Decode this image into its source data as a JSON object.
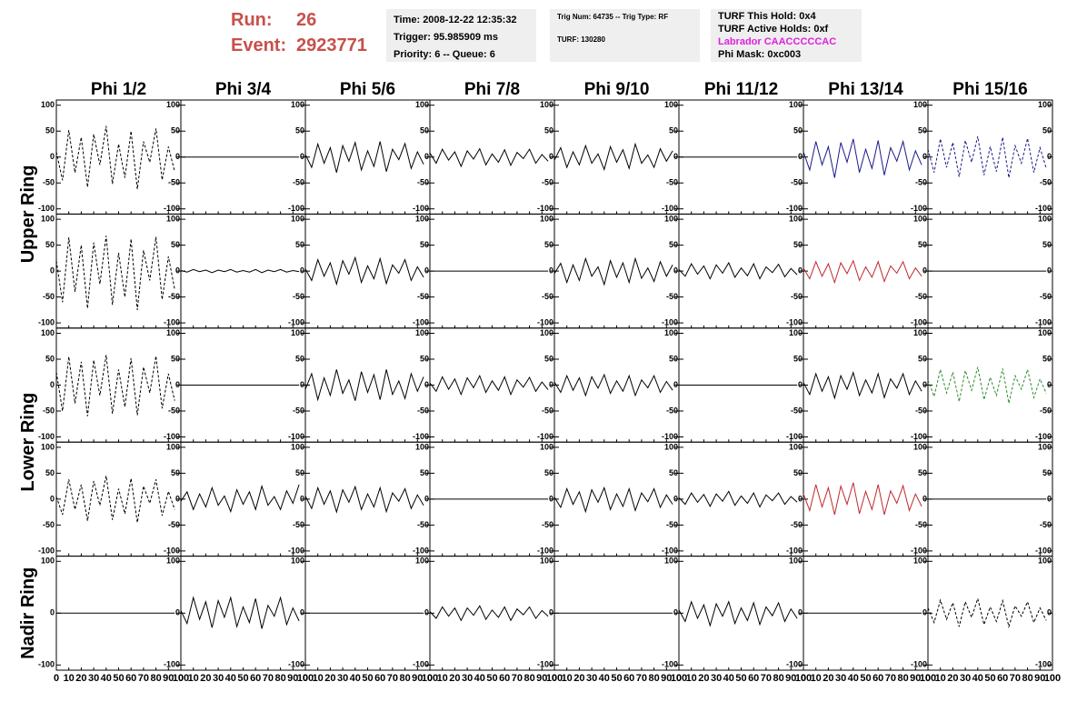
{
  "header": {
    "run_label": "Run:",
    "run": "26",
    "event_label": "Event:",
    "event": "2923771",
    "info_boxes": [
      [
        "Time: 2008-12-22 12:35:32",
        "Trigger: 95.985909 ms",
        "Priority: 6 -- Queue: 6"
      ],
      [
        "Trig Num: 64735 -- Trig Type: RF",
        "TURF: 130280"
      ],
      [
        "TURF This Hold: 0x4",
        "TURF Active Holds: 0xf",
        "Labrador CAACCCCCAC",
        "Phi Mask: 0xc003"
      ]
    ]
  },
  "chart_data": {
    "type": "line",
    "columns": [
      "Phi 1/2",
      "Phi 3/4",
      "Phi 5/6",
      "Phi 7/8",
      "Phi 9/10",
      "Phi 11/12",
      "Phi 13/14",
      "Phi 15/16"
    ],
    "rings": [
      "Upper Ring",
      "Lower Ring",
      "Nadir Ring"
    ],
    "xlim": [
      0,
      100
    ],
    "xticks": [
      0,
      10,
      20,
      30,
      40,
      50,
      60,
      70,
      80,
      90,
      100
    ],
    "ylim": [
      -110,
      110
    ],
    "yticks": [
      -100,
      -50,
      0,
      50,
      100
    ],
    "nadir_yticks": [
      -100,
      0,
      100
    ],
    "x": [
      0,
      5,
      10,
      15,
      20,
      25,
      30,
      35,
      40,
      45,
      50,
      55,
      60,
      65,
      70,
      75,
      80,
      85,
      90,
      95
    ],
    "panels": [
      [
        {
          "color": "#000000",
          "dashed": true,
          "values": [
            10,
            -45,
            52,
            -30,
            38,
            -58,
            44,
            -15,
            60,
            -52,
            25,
            -40,
            50,
            -62,
            30,
            -10,
            55,
            -44,
            20,
            -28
          ]
        },
        {
          "color": "#000000",
          "dashed": false,
          "values": [
            0,
            0,
            0,
            0,
            0,
            0,
            0,
            0,
            0,
            0,
            0,
            0,
            0,
            0,
            0,
            0,
            0,
            0,
            0,
            0
          ]
        },
        {
          "color": "#000000",
          "dashed": false,
          "values": [
            5,
            -20,
            25,
            -12,
            18,
            -30,
            22,
            -8,
            28,
            -25,
            12,
            -18,
            30,
            -28,
            15,
            -5,
            26,
            -22,
            10,
            -14
          ]
        },
        {
          "color": "#000000",
          "dashed": false,
          "values": [
            8,
            -12,
            15,
            -6,
            10,
            -18,
            12,
            -4,
            16,
            -15,
            6,
            -10,
            14,
            -16,
            9,
            -3,
            15,
            -12,
            5,
            -8
          ]
        },
        {
          "color": "#000000",
          "dashed": false,
          "values": [
            -6,
            18,
            -20,
            10,
            -15,
            22,
            -12,
            6,
            -24,
            20,
            -10,
            14,
            -22,
            25,
            -12,
            4,
            -20,
            16,
            -8,
            12
          ]
        },
        {
          "color": "#000000",
          "dashed": false,
          "values": [
            0,
            0,
            0,
            0,
            0,
            0,
            0,
            0,
            0,
            0,
            0,
            0,
            0,
            0,
            0,
            0,
            0,
            0,
            0,
            0
          ]
        },
        {
          "color": "#1a1a8c",
          "dashed": false,
          "values": [
            10,
            -25,
            30,
            -15,
            20,
            -40,
            28,
            -10,
            35,
            -30,
            15,
            -22,
            32,
            -35,
            18,
            -8,
            30,
            -25,
            12,
            -15
          ]
        },
        {
          "color": "#1a1a8c",
          "dashed": true,
          "values": [
            15,
            -30,
            35,
            -20,
            28,
            -38,
            32,
            -10,
            40,
            -35,
            20,
            -28,
            38,
            -40,
            22,
            -12,
            36,
            -30,
            18,
            -22
          ]
        }
      ],
      [
        {
          "color": "#000000",
          "dashed": true,
          "values": [
            20,
            -60,
            65,
            -40,
            50,
            -72,
            55,
            -25,
            68,
            -65,
            35,
            -50,
            62,
            -75,
            40,
            -18,
            66,
            -55,
            28,
            -35
          ]
        },
        {
          "color": "#000000",
          "dashed": false,
          "values": [
            1,
            -2,
            3,
            -1,
            2,
            -3,
            2,
            -1,
            3,
            -2,
            1,
            -2,
            3,
            -3,
            2,
            -1,
            3,
            -2,
            1,
            -1
          ]
        },
        {
          "color": "#000000",
          "dashed": false,
          "values": [
            4,
            -18,
            22,
            -10,
            16,
            -25,
            20,
            -6,
            26,
            -22,
            10,
            -15,
            24,
            -24,
            12,
            -4,
            22,
            -18,
            8,
            -12
          ]
        },
        {
          "color": "#000000",
          "dashed": false,
          "values": [
            0,
            0,
            0,
            0,
            0,
            0,
            0,
            0,
            0,
            0,
            0,
            0,
            0,
            0,
            0,
            0,
            0,
            0,
            0,
            0
          ]
        },
        {
          "color": "#000000",
          "dashed": false,
          "values": [
            -5,
            15,
            -22,
            12,
            -18,
            24,
            -10,
            8,
            -26,
            20,
            -12,
            16,
            -22,
            24,
            -14,
            6,
            -20,
            18,
            -10,
            12
          ]
        },
        {
          "color": "#000000",
          "dashed": false,
          "values": [
            3,
            -10,
            14,
            -6,
            10,
            -15,
            12,
            -4,
            16,
            -12,
            6,
            -9,
            14,
            -15,
            8,
            -3,
            13,
            -11,
            5,
            -7
          ]
        },
        {
          "color": "#c0282d",
          "dashed": false,
          "values": [
            6,
            -15,
            18,
            -10,
            14,
            -22,
            16,
            -5,
            20,
            -18,
            8,
            -12,
            18,
            -20,
            10,
            -4,
            18,
            -15,
            6,
            -10
          ]
        },
        {
          "color": "#000000",
          "dashed": false,
          "values": [
            0,
            0,
            0,
            0,
            0,
            0,
            0,
            0,
            0,
            0,
            0,
            0,
            0,
            0,
            0,
            0,
            0,
            0,
            0,
            0
          ]
        }
      ],
      [
        {
          "color": "#000000",
          "dashed": true,
          "values": [
            25,
            -50,
            55,
            -35,
            45,
            -60,
            48,
            -20,
            58,
            -55,
            30,
            -42,
            52,
            -58,
            35,
            -15,
            56,
            -45,
            22,
            -30
          ]
        },
        {
          "color": "#000000",
          "dashed": false,
          "values": [
            0,
            0,
            0,
            0,
            0,
            0,
            0,
            0,
            0,
            0,
            0,
            0,
            0,
            0,
            0,
            0,
            0,
            0,
            0,
            0
          ]
        },
        {
          "color": "#000000",
          "dashed": false,
          "values": [
            -8,
            22,
            -28,
            14,
            -20,
            30,
            -16,
            10,
            -30,
            26,
            -14,
            20,
            -28,
            30,
            -18,
            8,
            -26,
            22,
            -12,
            16
          ]
        },
        {
          "color": "#000000",
          "dashed": false,
          "values": [
            4,
            -12,
            16,
            -8,
            12,
            -18,
            14,
            -5,
            18,
            -14,
            8,
            -10,
            16,
            -18,
            10,
            -4,
            15,
            -12,
            6,
            -9
          ]
        },
        {
          "color": "#000000",
          "dashed": false,
          "values": [
            6,
            -14,
            18,
            -10,
            14,
            -20,
            16,
            -6,
            20,
            -16,
            8,
            -12,
            18,
            -20,
            10,
            -5,
            18,
            -14,
            7,
            -10
          ]
        },
        {
          "color": "#000000",
          "dashed": false,
          "values": [
            0,
            0,
            0,
            0,
            0,
            0,
            0,
            0,
            0,
            0,
            0,
            0,
            0,
            0,
            0,
            0,
            0,
            0,
            0,
            0
          ]
        },
        {
          "color": "#000000",
          "dashed": false,
          "values": [
            5,
            -18,
            22,
            -12,
            16,
            -25,
            18,
            -8,
            24,
            -20,
            10,
            -15,
            22,
            -24,
            12,
            -6,
            22,
            -18,
            8,
            -12
          ]
        },
        {
          "color": "#2e8b2e",
          "dashed": true,
          "values": [
            10,
            -22,
            30,
            -15,
            25,
            -32,
            28,
            -10,
            35,
            -28,
            15,
            -20,
            32,
            -35,
            18,
            -8,
            30,
            -24,
            12,
            -16
          ]
        }
      ],
      [
        {
          "color": "#000000",
          "dashed": true,
          "values": [
            5,
            -30,
            38,
            -20,
            28,
            -42,
            35,
            -12,
            45,
            -40,
            20,
            -28,
            40,
            -45,
            25,
            -8,
            38,
            -32,
            15,
            -20
          ]
        },
        {
          "color": "#000000",
          "dashed": false,
          "values": [
            -4,
            14,
            -20,
            10,
            -15,
            22,
            -12,
            6,
            -24,
            18,
            -10,
            14,
            -20,
            25,
            -12,
            5,
            -20,
            16,
            -8,
            28
          ]
        },
        {
          "color": "#000000",
          "dashed": false,
          "values": [
            6,
            -18,
            22,
            -10,
            16,
            -25,
            18,
            -6,
            24,
            -20,
            10,
            -15,
            22,
            -24,
            12,
            -4,
            20,
            -18,
            8,
            -12
          ]
        },
        {
          "color": "#000000",
          "dashed": false,
          "values": [
            0,
            0,
            0,
            0,
            0,
            0,
            0,
            0,
            0,
            0,
            0,
            0,
            0,
            0,
            0,
            0,
            0,
            0,
            0,
            0
          ]
        },
        {
          "color": "#000000",
          "dashed": false,
          "values": [
            4,
            -16,
            20,
            -10,
            14,
            -24,
            18,
            -6,
            22,
            -20,
            10,
            -14,
            20,
            -22,
            12,
            -5,
            20,
            -16,
            8,
            -10
          ]
        },
        {
          "color": "#000000",
          "dashed": false,
          "values": [
            3,
            -10,
            12,
            -6,
            9,
            -14,
            10,
            -4,
            15,
            -12,
            6,
            -8,
            12,
            -15,
            8,
            -3,
            12,
            -10,
            5,
            -6
          ]
        },
        {
          "color": "#c0282d",
          "dashed": false,
          "values": [
            10,
            -22,
            28,
            -15,
            22,
            -30,
            25,
            -10,
            32,
            -28,
            15,
            -20,
            28,
            -30,
            16,
            -8,
            26,
            -22,
            10,
            -14
          ]
        },
        {
          "color": "#000000",
          "dashed": false,
          "values": [
            0,
            0,
            0,
            0,
            0,
            0,
            0,
            0,
            0,
            0,
            0,
            0,
            0,
            0,
            0,
            0,
            0,
            0,
            0,
            0
          ]
        }
      ],
      [
        {
          "color": "#000000",
          "dashed": false,
          "values": [
            0,
            0,
            0,
            0,
            0,
            0,
            0,
            0,
            0,
            0,
            0,
            0,
            0,
            0,
            0,
            0,
            0,
            0,
            0,
            0
          ]
        },
        {
          "color": "#000000",
          "dashed": false,
          "values": [
            5,
            -20,
            30,
            -12,
            22,
            -28,
            24,
            -8,
            30,
            -26,
            12,
            -18,
            28,
            -30,
            15,
            -6,
            30,
            -22,
            10,
            -15
          ]
        },
        {
          "color": "#000000",
          "dashed": false,
          "values": [
            0,
            0,
            0,
            0,
            0,
            0,
            0,
            0,
            0,
            0,
            0,
            0,
            0,
            0,
            0,
            0,
            0,
            0,
            0,
            0
          ]
        },
        {
          "color": "#000000",
          "dashed": false,
          "values": [
            3,
            -10,
            12,
            -6,
            10,
            -14,
            10,
            -4,
            14,
            -12,
            6,
            -8,
            12,
            -14,
            8,
            -3,
            12,
            -10,
            5,
            -6
          ]
        },
        {
          "color": "#000000",
          "dashed": false,
          "values": [
            0,
            0,
            0,
            0,
            0,
            0,
            0,
            0,
            0,
            0,
            0,
            0,
            0,
            0,
            0,
            0,
            0,
            0,
            0,
            0
          ]
        },
        {
          "color": "#000000",
          "dashed": false,
          "values": [
            6,
            -16,
            22,
            -10,
            16,
            -24,
            18,
            -6,
            22,
            -20,
            10,
            -14,
            20,
            -22,
            12,
            -5,
            20,
            -16,
            8,
            -10
          ]
        },
        {
          "color": "#000000",
          "dashed": false,
          "values": [
            0,
            0,
            0,
            0,
            0,
            0,
            0,
            0,
            0,
            0,
            0,
            0,
            0,
            0,
            0,
            0,
            0,
            0,
            0,
            0
          ]
        },
        {
          "color": "#000000",
          "dashed": true,
          "values": [
            10,
            -18,
            25,
            -12,
            20,
            -26,
            22,
            -8,
            28,
            -22,
            12,
            -16,
            24,
            -26,
            14,
            -6,
            22,
            -18,
            10,
            -14
          ]
        }
      ]
    ]
  }
}
